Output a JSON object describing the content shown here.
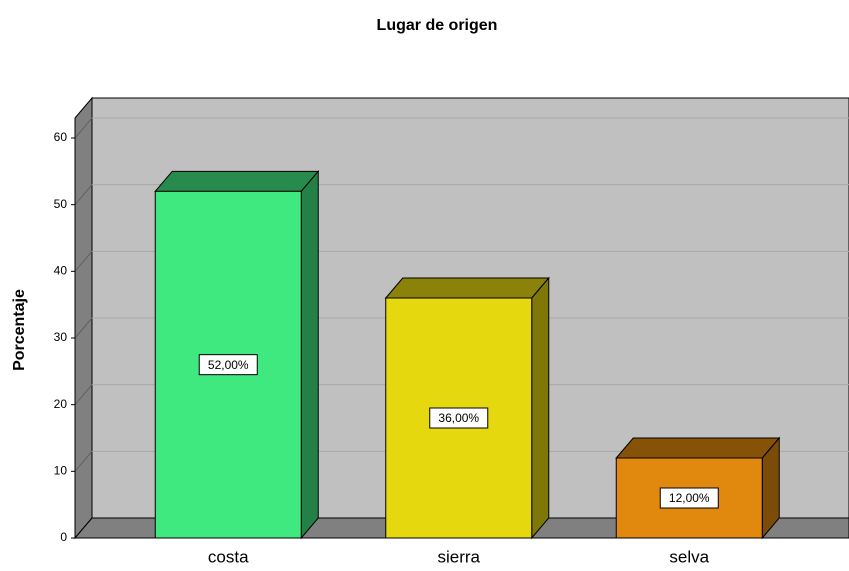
{
  "chart_data": {
    "type": "bar3d",
    "title": "Lugar de origen",
    "y_label": "Porcentaje",
    "categories": [
      "costa",
      "sierra",
      "selva"
    ],
    "values": [
      52,
      36,
      12
    ],
    "value_labels": [
      "52,00%",
      "36,00%",
      "12,00%"
    ],
    "colors": [
      "#40e880",
      "#e6d80f",
      "#e0890e"
    ],
    "ylim": [
      0,
      63
    ],
    "yticks": [
      0,
      10,
      20,
      30,
      40,
      50,
      60
    ],
    "grid": true
  }
}
